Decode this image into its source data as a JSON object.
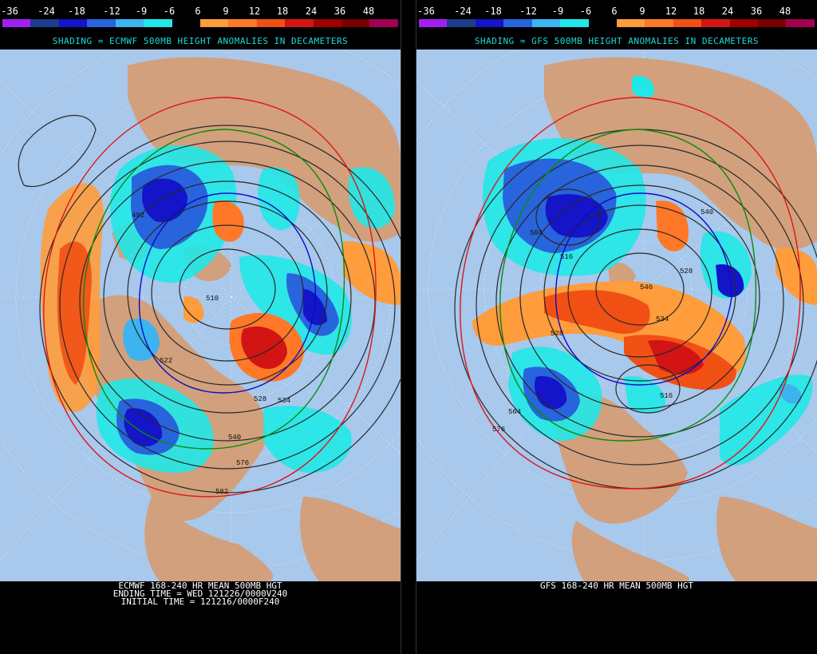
{
  "colorbar": {
    "labels": [
      "-36",
      "-24",
      "-18",
      "-12",
      "-9",
      "-6",
      "6",
      "9",
      "12",
      "18",
      "24",
      "36",
      "48"
    ],
    "colors": [
      "#a020f0",
      "#1e3c8c",
      "#1414c8",
      "#2864dc",
      "#3cb4f0",
      "#20e8e8",
      "#000000",
      "#ff9c3c",
      "#ff7828",
      "#f05014",
      "#d21414",
      "#a00000",
      "#780000",
      "#a00050"
    ]
  },
  "left_panel": {
    "shading_title": "SHADING = ECMWF 500MB HEIGHT ANOMALIES IN DECAMETERS",
    "caption_line1": "ECMWF 168-240 HR MEAN 500MB HGT",
    "caption_line2": "ENDING TIME = WED 121226/0000V240",
    "caption_line3": "INITIAL TIME = 121216/0000F240",
    "contour_labels": [
      "510",
      "522",
      "528",
      "534",
      "540",
      "576",
      "582",
      "492"
    ]
  },
  "right_panel": {
    "shading_title": "SHADING = GFS 500MB HEIGHT ANOMALIES IN DECAMETERS",
    "caption_line1": "GFS 168-240 HR MEAN 500MB HGT",
    "contour_labels": [
      "516",
      "504",
      "540",
      "546",
      "528",
      "564",
      "576",
      "516",
      "528",
      "534"
    ]
  },
  "map_colors": {
    "ocean": "#a8c8ec",
    "land": "#d2a07c",
    "contour": "#282828",
    "line_576": "#e01414",
    "line_552": "#0a8c0a",
    "line_528": "#0a0ac8"
  }
}
